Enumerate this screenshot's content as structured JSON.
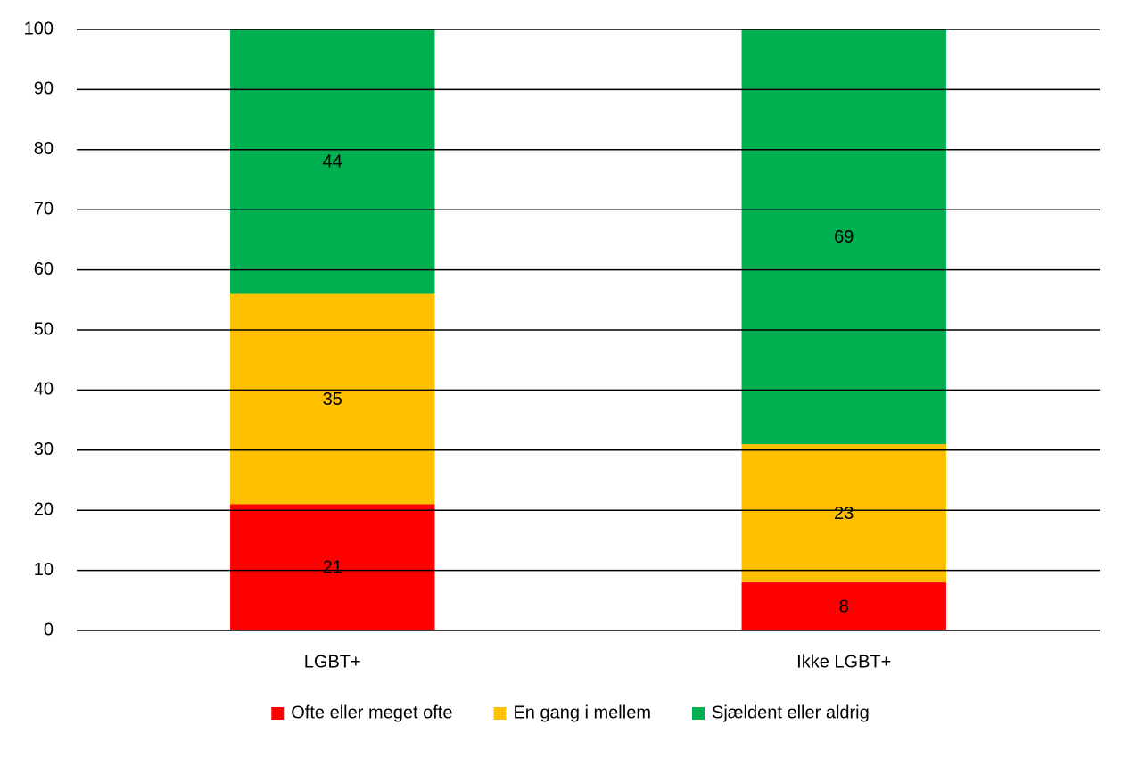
{
  "chart_data": {
    "type": "stacked-bar",
    "categories": [
      "LGBT+",
      "Ikke LGBT+"
    ],
    "series": [
      {
        "name": "Ofte eller meget ofte",
        "color": "#ff0000",
        "values": [
          21,
          8
        ]
      },
      {
        "name": "En gang i mellem",
        "color": "#ffc000",
        "values": [
          35,
          23
        ]
      },
      {
        "name": "Sjældent eller aldrig",
        "color": "#00b050",
        "values": [
          44,
          69
        ]
      }
    ],
    "ylim": [
      0,
      100
    ],
    "yticks": [
      0,
      10,
      20,
      30,
      40,
      50,
      60,
      70,
      80,
      90,
      100
    ],
    "grid": true,
    "legend": "bottom"
  }
}
